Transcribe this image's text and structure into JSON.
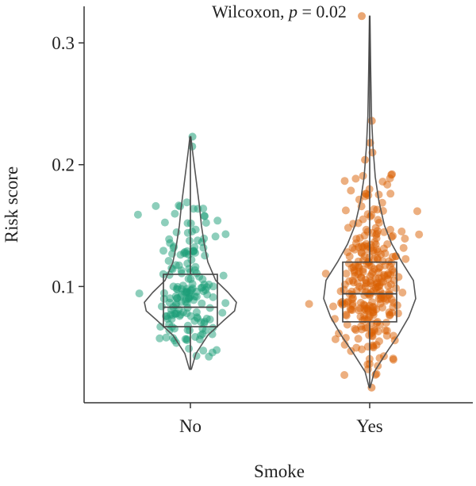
{
  "chart_data": {
    "type": "violin-box-jitter",
    "title": "",
    "annotation_prefix": "Wilcoxon, ",
    "annotation_p_symbol": "p",
    "annotation_p_value": " = 0.02",
    "xlabel": "Smoke",
    "ylabel": "Risk score",
    "ylim": [
      0.0,
      0.33
    ],
    "yticks": [
      {
        "value": 0.1,
        "label": "0.1"
      },
      {
        "value": 0.2,
        "label": "0.2"
      },
      {
        "value": 0.3,
        "label": "0.3"
      }
    ],
    "grid": false,
    "legend": "none",
    "groups": [
      {
        "category": "No",
        "color": "#1b9e77",
        "n_points": 180,
        "min": 0.032,
        "q1": 0.067,
        "median": 0.083,
        "q3": 0.11,
        "max": 0.223,
        "density": [
          [
            0.032,
            0.02
          ],
          [
            0.045,
            0.12
          ],
          [
            0.06,
            0.38
          ],
          [
            0.072,
            0.72
          ],
          [
            0.08,
            0.96
          ],
          [
            0.087,
            1.0
          ],
          [
            0.095,
            0.82
          ],
          [
            0.105,
            0.55
          ],
          [
            0.12,
            0.38
          ],
          [
            0.135,
            0.3
          ],
          [
            0.15,
            0.24
          ],
          [
            0.165,
            0.2
          ],
          [
            0.18,
            0.15
          ],
          [
            0.195,
            0.1
          ],
          [
            0.21,
            0.05
          ],
          [
            0.223,
            0.01
          ]
        ],
        "outliers": [
          0.223,
          0.215
        ]
      },
      {
        "category": "Yes",
        "color": "#d95f02",
        "n_points": 300,
        "min": 0.017,
        "q1": 0.071,
        "median": 0.094,
        "q3": 0.12,
        "max": 0.322,
        "density": [
          [
            0.017,
            0.01
          ],
          [
            0.03,
            0.1
          ],
          [
            0.045,
            0.35
          ],
          [
            0.06,
            0.62
          ],
          [
            0.075,
            0.85
          ],
          [
            0.09,
            1.0
          ],
          [
            0.105,
            0.95
          ],
          [
            0.12,
            0.7
          ],
          [
            0.135,
            0.48
          ],
          [
            0.15,
            0.32
          ],
          [
            0.17,
            0.2
          ],
          [
            0.19,
            0.12
          ],
          [
            0.215,
            0.07
          ],
          [
            0.24,
            0.04
          ],
          [
            0.28,
            0.02
          ],
          [
            0.322,
            0.005
          ]
        ],
        "outliers": [
          0.322,
          0.236,
          0.218,
          0.21,
          0.204,
          0.017
        ]
      }
    ]
  }
}
